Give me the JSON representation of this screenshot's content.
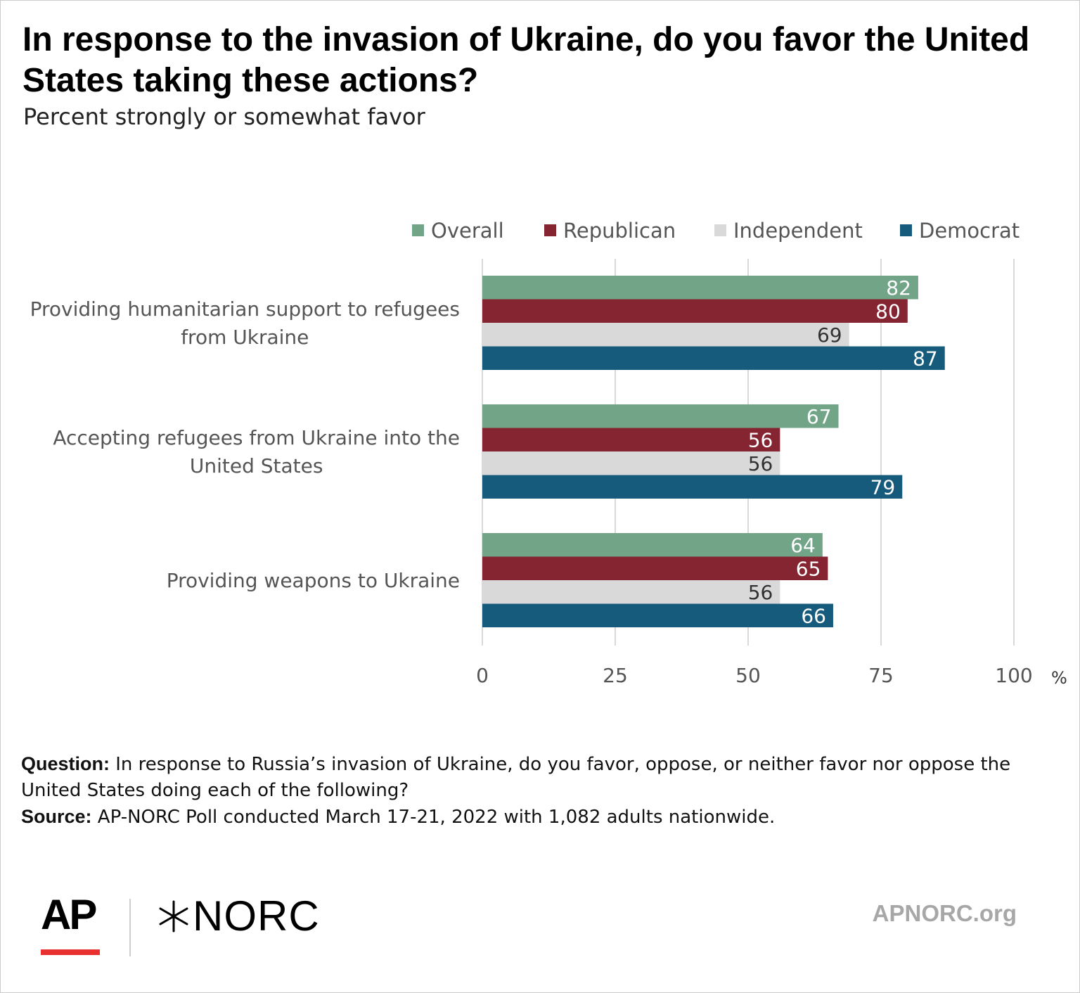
{
  "title": "In response to the invasion of Ukraine, do you favor the United States taking these actions?",
  "subtitle": "Percent strongly or somewhat favor",
  "chart_data": {
    "type": "bar",
    "orientation": "horizontal",
    "categories": [
      "Providing humanitarian support to refugees from Ukraine",
      "Accepting refugees from Ukraine into the United States",
      "Providing weapons to Ukraine"
    ],
    "category_lines": [
      [
        "Providing humanitarian support to refugees",
        "from Ukraine"
      ],
      [
        "Accepting refugees from Ukraine into the",
        "United States"
      ],
      [
        "Providing weapons to Ukraine"
      ]
    ],
    "series": [
      {
        "name": "Overall",
        "color": "#72a488",
        "label_color": "#ffffff",
        "values": [
          82,
          67,
          64
        ]
      },
      {
        "name": "Republican",
        "color": "#852532",
        "label_color": "#ffffff",
        "values": [
          80,
          56,
          65
        ]
      },
      {
        "name": "Independent",
        "color": "#d9d9d9",
        "label_color": "#333333",
        "values": [
          69,
          56,
          56
        ]
      },
      {
        "name": "Democrat",
        "color": "#165b7c",
        "label_color": "#ffffff",
        "values": [
          87,
          79,
          66
        ]
      }
    ],
    "xlim": [
      0,
      100
    ],
    "xticks": [
      "0",
      "25",
      "50",
      "75",
      "100"
    ],
    "xunit": "%",
    "grid": true,
    "legend_position": "top"
  },
  "notes": {
    "question_lead": "Question:",
    "question_text": " In response to Russia’s invasion of Ukraine, do you favor, oppose, or neither favor nor oppose the United States doing each of the following?",
    "source_lead": "Source:",
    "source_text": " AP-NORC Poll conducted March 17-21, 2022 with 1,082 adults nationwide."
  },
  "footer": {
    "ap_logo": "AP",
    "norc_logo": "NORC",
    "website": "APNORC.org"
  }
}
